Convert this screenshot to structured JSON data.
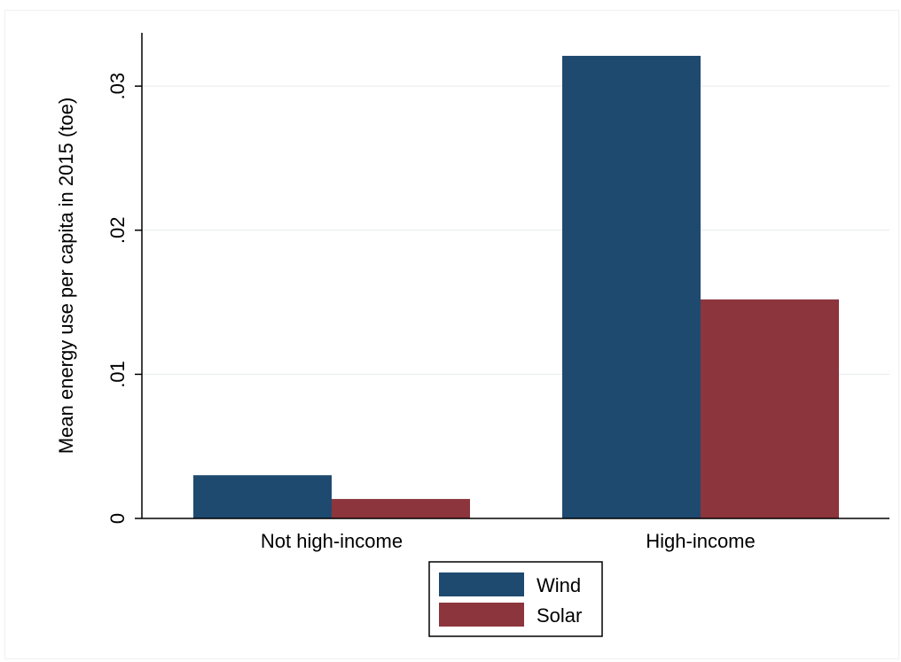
{
  "chart_data": {
    "type": "bar",
    "title": "",
    "xlabel": "",
    "ylabel": "Mean energy use per capita in 2015 (toe)",
    "categories": [
      "Not high-income",
      "High-income"
    ],
    "series": [
      {
        "name": "Wind",
        "values": [
          0.003,
          0.0321
        ],
        "color": "#1f4a70"
      },
      {
        "name": "Solar",
        "values": [
          0.00135,
          0.0152
        ],
        "color": "#8c353d"
      }
    ],
    "ylim": [
      0,
      0.0337
    ],
    "yticks": [
      0,
      0.01,
      0.02,
      0.03
    ],
    "ytick_labels": [
      "0",
      ".01",
      ".02",
      ".03"
    ],
    "grid": true,
    "legend": "bottom-center"
  }
}
